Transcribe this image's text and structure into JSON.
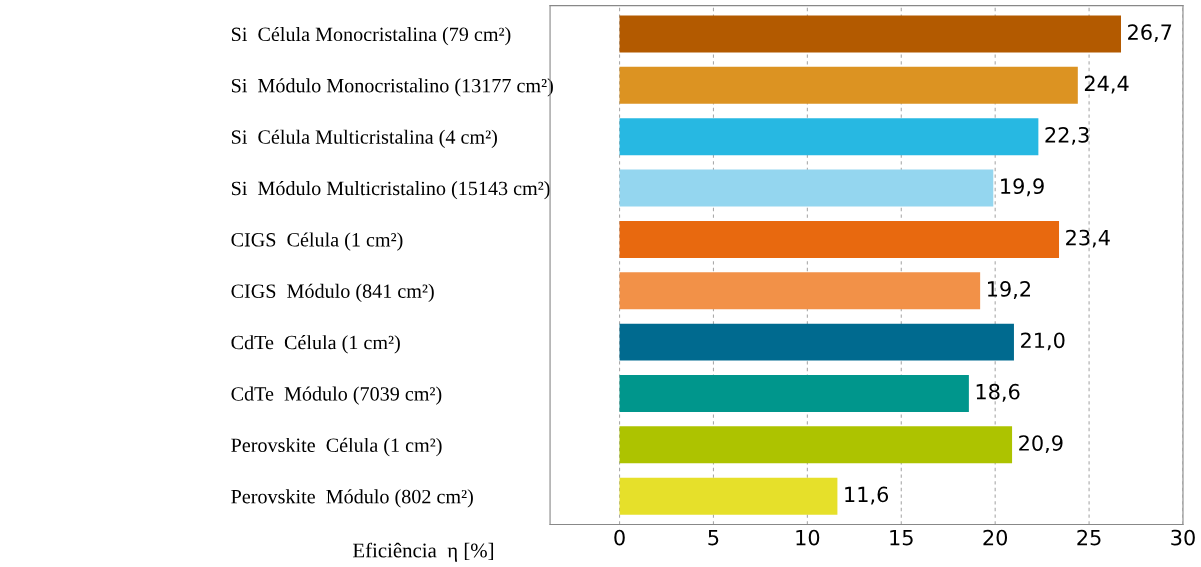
{
  "chart_data": {
    "type": "bar",
    "orientation": "horizontal",
    "xlabel": "Eficiência  η [%]",
    "categories": [
      "Si  Célula Monocristalina (79 cm²)",
      "Si  Módulo Monocristalino (13177 cm²)",
      "Si  Célula Multicristalina (4 cm²)",
      "Si  Módulo Multicristalino (15143 cm²)",
      "CIGS  Célula (1 cm²)",
      "CIGS  Módulo (841 cm²)",
      "CdTe  Célula (1 cm²)",
      "CdTe  Módulo (7039 cm²)",
      "Perovskite  Célula (1 cm²)",
      "Perovskite  Módulo (802 cm²)"
    ],
    "values": [
      26.7,
      24.4,
      22.3,
      19.9,
      23.4,
      19.2,
      21.0,
      18.6,
      20.9,
      11.6
    ],
    "value_labels": [
      "26,7",
      "24,4",
      "22,3",
      "19,9",
      "23,4",
      "19,2",
      "21,0",
      "18,6",
      "20,9",
      "11,6"
    ],
    "colors": [
      "#b35a00",
      "#dc9322",
      "#27b8e2",
      "#94d6ef",
      "#e8690f",
      "#f29148",
      "#006a8f",
      "#00968c",
      "#adc300",
      "#e6e02a"
    ],
    "xlim": [
      -3.7,
      30
    ],
    "xticks": [
      0,
      5,
      10,
      15,
      20,
      25,
      30
    ],
    "grid": "x"
  }
}
